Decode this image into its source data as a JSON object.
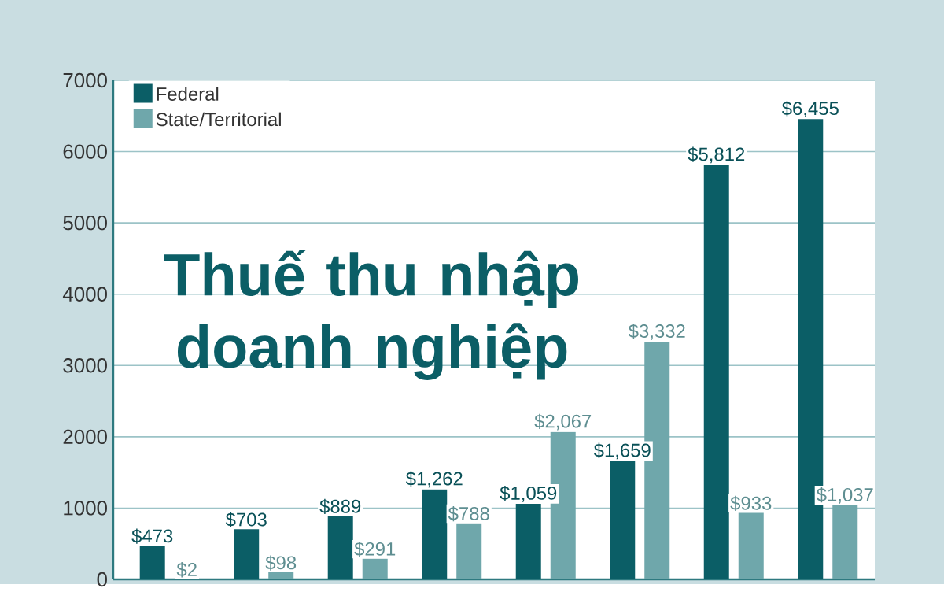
{
  "chart_data": {
    "type": "bar",
    "title": "Thuế thu nhập doanh nghiệp",
    "categories": [
      null,
      null,
      null,
      null,
      null,
      null,
      null,
      null
    ],
    "series": [
      {
        "name": "Federal",
        "color": "#0b5e66",
        "values": [
          473,
          703,
          889,
          1262,
          1059,
          1659,
          5812,
          6455
        ],
        "value_labels": [
          "$473",
          "$703",
          "$889",
          "$1,262",
          "$1,059",
          "$1,659",
          "$5,812",
          "$6,455"
        ]
      },
      {
        "name": "State/Territorial",
        "color": "#6fa7ab",
        "values": [
          2,
          98,
          291,
          788,
          2067,
          3332,
          933,
          1037
        ],
        "value_labels": [
          "$2",
          "$98",
          "$291",
          "$788",
          "$2,067",
          "$3,332",
          "$933",
          "$1,037"
        ]
      }
    ],
    "ylim": [
      0,
      7000
    ],
    "yticks": [
      0,
      1000,
      2000,
      3000,
      4000,
      5000,
      6000,
      7000
    ],
    "grid": "y",
    "legend": "top left"
  }
}
